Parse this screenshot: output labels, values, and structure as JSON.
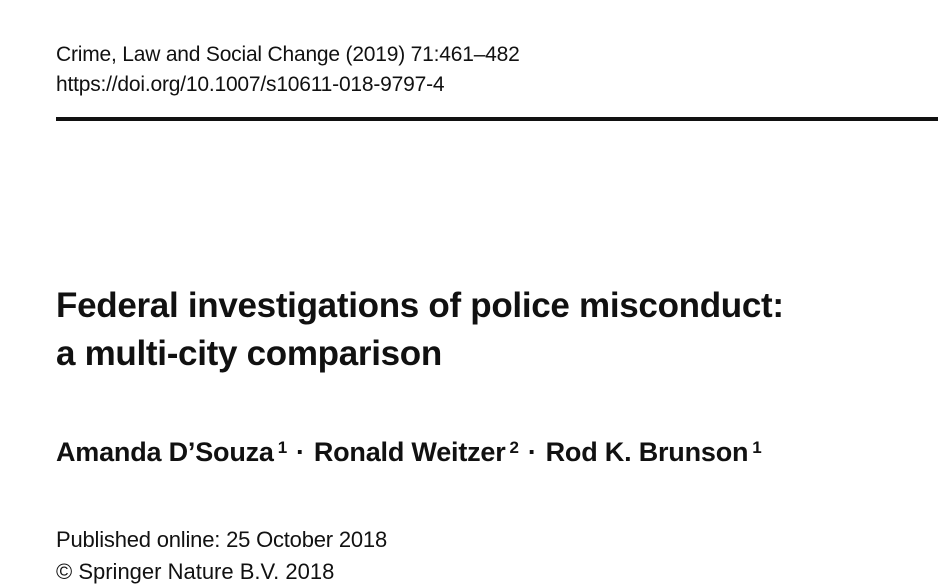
{
  "header": {
    "citation": "Crime, Law and Social Change (2019) 71:461–482",
    "doi": "https://doi.org/10.1007/s10611-018-9797-4"
  },
  "title": {
    "line1": "Federal investigations of police misconduct:",
    "line2": "a multi-city comparison"
  },
  "authors": [
    {
      "name": "Amanda D’Souza",
      "affiliation": "1"
    },
    {
      "name": "Ronald Weitzer",
      "affiliation": "2"
    },
    {
      "name": "Rod K. Brunson",
      "affiliation": "1"
    }
  ],
  "separator": "·",
  "published": "Published online: 25 October 2018",
  "copyright": "© Springer Nature B.V. 2018"
}
